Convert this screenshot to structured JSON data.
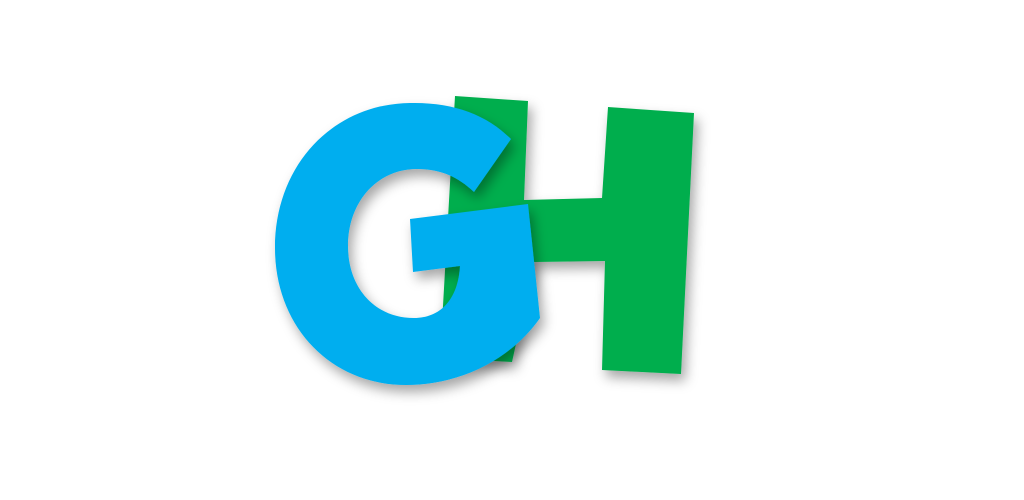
{
  "logo": {
    "letters": [
      "G",
      "H"
    ],
    "colors": {
      "g_letter": "#03AEEF",
      "h_letter": "#00AE4D",
      "background": "#FFFFFF"
    }
  }
}
